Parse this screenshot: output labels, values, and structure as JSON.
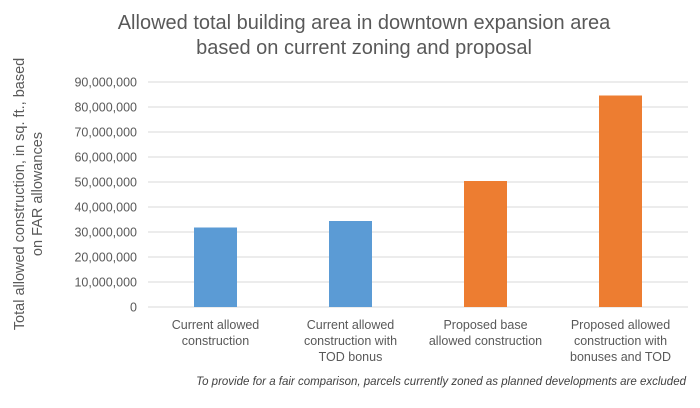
{
  "chart_data": {
    "type": "bar",
    "title_lines": [
      "Allowed total building area in downtown expansion area",
      "based on current zoning and proposal"
    ],
    "ylabel_lines": [
      "Total allowed construction, in sq. ft., based",
      "on FAR allowances"
    ],
    "xlabel": "",
    "ylim": [
      0,
      90000000
    ],
    "yticks": [
      0,
      10000000,
      20000000,
      30000000,
      40000000,
      50000000,
      60000000,
      70000000,
      80000000,
      90000000
    ],
    "ytick_labels": [
      "0",
      "10,000,000",
      "20,000,000",
      "30,000,000",
      "40,000,000",
      "50,000,000",
      "60,000,000",
      "70,000,000",
      "80,000,000",
      "90,000,000"
    ],
    "grid": true,
    "categories": [
      {
        "lines": [
          "Current allowed",
          "construction"
        ]
      },
      {
        "lines": [
          "Current allowed",
          "construction with",
          "TOD bonus"
        ]
      },
      {
        "lines": [
          "Proposed base",
          "allowed construction"
        ]
      },
      {
        "lines": [
          "Proposed allowed",
          "construction with",
          "bonuses and TOD"
        ]
      }
    ],
    "values": [
      31800000,
      34400000,
      50400000,
      84600000
    ],
    "bar_colors": [
      "#5b9bd5",
      "#5b9bd5",
      "#ed7d31",
      "#ed7d31"
    ],
    "footnote": "To provide for a fair comparison, parcels currently zoned as planned developments are excluded"
  },
  "colors": {
    "current": "#5b9bd5",
    "proposed": "#ed7d31",
    "grid": "#d9d9d9",
    "text": "#595959"
  }
}
